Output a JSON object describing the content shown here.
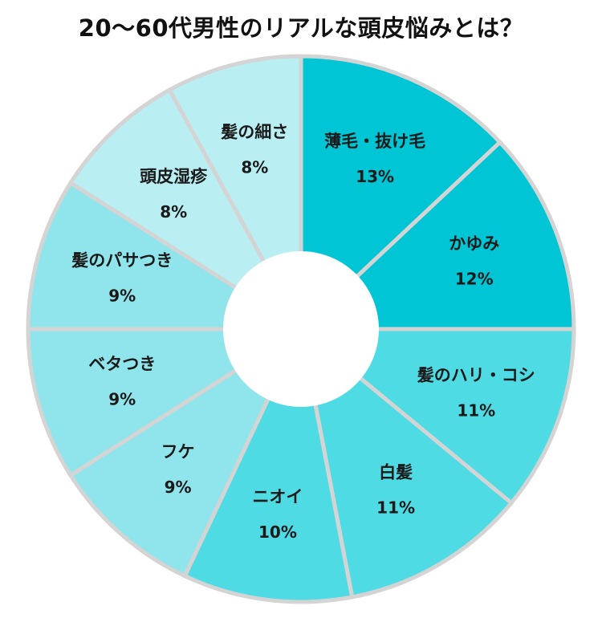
{
  "chart_data": {
    "type": "donut",
    "title": "20〜60代男性のリアルな頭皮悩みとは？",
    "value_suffix": "%",
    "slices": [
      {
        "label": "薄毛・抜け毛",
        "value": 13,
        "color": "#00c5d4"
      },
      {
        "label": "かゆみ",
        "value": 12,
        "color": "#00c5d4"
      },
      {
        "label": "髪のハリ・コシ",
        "value": 11,
        "color": "#4edbe4"
      },
      {
        "label": "白髪",
        "value": 11,
        "color": "#4edbe4"
      },
      {
        "label": "ニオイ",
        "value": 10,
        "color": "#4edbe4"
      },
      {
        "label": "フケ",
        "value": 9,
        "color": "#8fe5eb"
      },
      {
        "label": "ベタつき",
        "value": 9,
        "color": "#8fe5eb"
      },
      {
        "label": "髪のパサつき",
        "value": 9,
        "color": "#8fe5eb"
      },
      {
        "label": "頭皮湿疹",
        "value": 8,
        "color": "#b9eef2"
      },
      {
        "label": "髪の細さ",
        "value": 8,
        "color": "#b9eef2"
      }
    ]
  }
}
